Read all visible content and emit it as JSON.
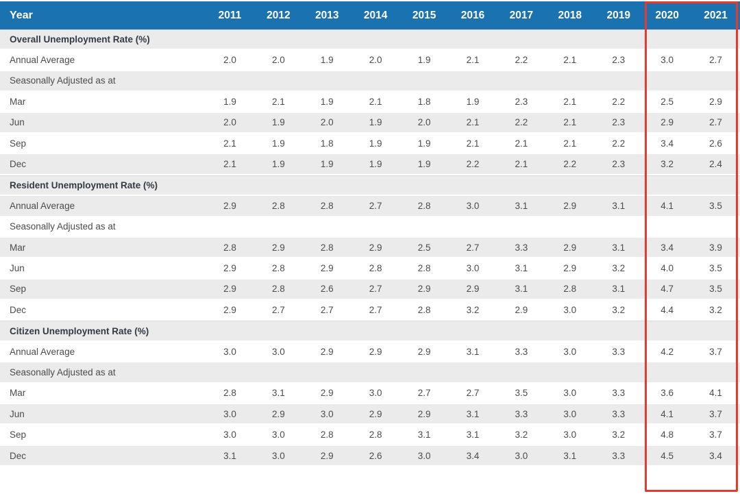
{
  "colors": {
    "header_bg": "#1b72b1",
    "header_text": "#ffffff",
    "section_title_text": "#323a46",
    "body_text": "#4b4b4b",
    "shaded_row_bg": "#ebebeb",
    "plain_row_bg": "#ffffff",
    "highlight_box_color": "#e8392d"
  },
  "table": {
    "label_header": "Year",
    "highlight": {
      "years": [
        "2020",
        "2021"
      ]
    }
  },
  "chart_data": {
    "type": "table",
    "columns": [
      "Year",
      "2011",
      "2012",
      "2013",
      "2014",
      "2015",
      "2016",
      "2017",
      "2018",
      "2019",
      "2020",
      "2021"
    ],
    "highlighted_columns": [
      "2020",
      "2021"
    ],
    "sections": [
      {
        "title": "Overall Unemployment Rate (%)",
        "rows": [
          {
            "label": "Annual Average",
            "values": [
              "2.0",
              "2.0",
              "1.9",
              "2.0",
              "1.9",
              "2.1",
              "2.2",
              "2.1",
              "2.3",
              "3.0",
              "2.7"
            ]
          },
          {
            "label": "Seasonally Adjusted as at",
            "values": [
              "",
              "",
              "",
              "",
              "",
              "",
              "",
              "",
              "",
              "",
              ""
            ]
          },
          {
            "label": "Mar",
            "values": [
              "1.9",
              "2.1",
              "1.9",
              "2.1",
              "1.8",
              "1.9",
              "2.3",
              "2.1",
              "2.2",
              "2.5",
              "2.9"
            ]
          },
          {
            "label": "Jun",
            "values": [
              "2.0",
              "1.9",
              "2.0",
              "1.9",
              "2.0",
              "2.1",
              "2.2",
              "2.1",
              "2.3",
              "2.9",
              "2.7"
            ]
          },
          {
            "label": "Sep",
            "values": [
              "2.1",
              "1.9",
              "1.8",
              "1.9",
              "1.9",
              "2.1",
              "2.1",
              "2.1",
              "2.2",
              "3.4",
              "2.6"
            ]
          },
          {
            "label": "Dec",
            "values": [
              "2.1",
              "1.9",
              "1.9",
              "1.9",
              "1.9",
              "2.2",
              "2.1",
              "2.2",
              "2.3",
              "3.2",
              "2.4"
            ]
          }
        ]
      },
      {
        "title": "Resident Unemployment Rate (%)",
        "rows": [
          {
            "label": "Annual Average",
            "values": [
              "2.9",
              "2.8",
              "2.8",
              "2.7",
              "2.8",
              "3.0",
              "3.1",
              "2.9",
              "3.1",
              "4.1",
              "3.5"
            ]
          },
          {
            "label": "Seasonally Adjusted as at",
            "values": [
              "",
              "",
              "",
              "",
              "",
              "",
              "",
              "",
              "",
              "",
              ""
            ]
          },
          {
            "label": "Mar",
            "values": [
              "2.8",
              "2.9",
              "2.8",
              "2.9",
              "2.5",
              "2.7",
              "3.3",
              "2.9",
              "3.1",
              "3.4",
              "3.9"
            ]
          },
          {
            "label": "Jun",
            "values": [
              "2.9",
              "2.8",
              "2.9",
              "2.8",
              "2.8",
              "3.0",
              "3.1",
              "2.9",
              "3.2",
              "4.0",
              "3.5"
            ]
          },
          {
            "label": "Sep",
            "values": [
              "2.9",
              "2.8",
              "2.6",
              "2.7",
              "2.9",
              "2.9",
              "3.1",
              "2.8",
              "3.1",
              "4.7",
              "3.5"
            ]
          },
          {
            "label": "Dec",
            "values": [
              "2.9",
              "2.7",
              "2.7",
              "2.7",
              "2.8",
              "3.2",
              "2.9",
              "3.0",
              "3.2",
              "4.4",
              "3.2"
            ]
          }
        ]
      },
      {
        "title": "Citizen Unemployment Rate (%)",
        "rows": [
          {
            "label": "Annual Average",
            "values": [
              "3.0",
              "3.0",
              "2.9",
              "2.9",
              "2.9",
              "3.1",
              "3.3",
              "3.0",
              "3.3",
              "4.2",
              "3.7"
            ]
          },
          {
            "label": "Seasonally Adjusted as at",
            "values": [
              "",
              "",
              "",
              "",
              "",
              "",
              "",
              "",
              "",
              "",
              ""
            ]
          },
          {
            "label": "Mar",
            "values": [
              "2.8",
              "3.1",
              "2.9",
              "3.0",
              "2.7",
              "2.7",
              "3.5",
              "3.0",
              "3.3",
              "3.6",
              "4.1"
            ]
          },
          {
            "label": "Jun",
            "values": [
              "3.0",
              "2.9",
              "3.0",
              "2.9",
              "2.9",
              "3.1",
              "3.3",
              "3.0",
              "3.3",
              "4.1",
              "3.7"
            ]
          },
          {
            "label": "Sep",
            "values": [
              "3.0",
              "3.0",
              "2.8",
              "2.8",
              "3.1",
              "3.1",
              "3.2",
              "3.0",
              "3.2",
              "4.8",
              "3.7"
            ]
          },
          {
            "label": "Dec",
            "values": [
              "3.1",
              "3.0",
              "2.9",
              "2.6",
              "3.0",
              "3.4",
              "3.0",
              "3.1",
              "3.3",
              "4.5",
              "3.4"
            ]
          }
        ]
      }
    ]
  }
}
